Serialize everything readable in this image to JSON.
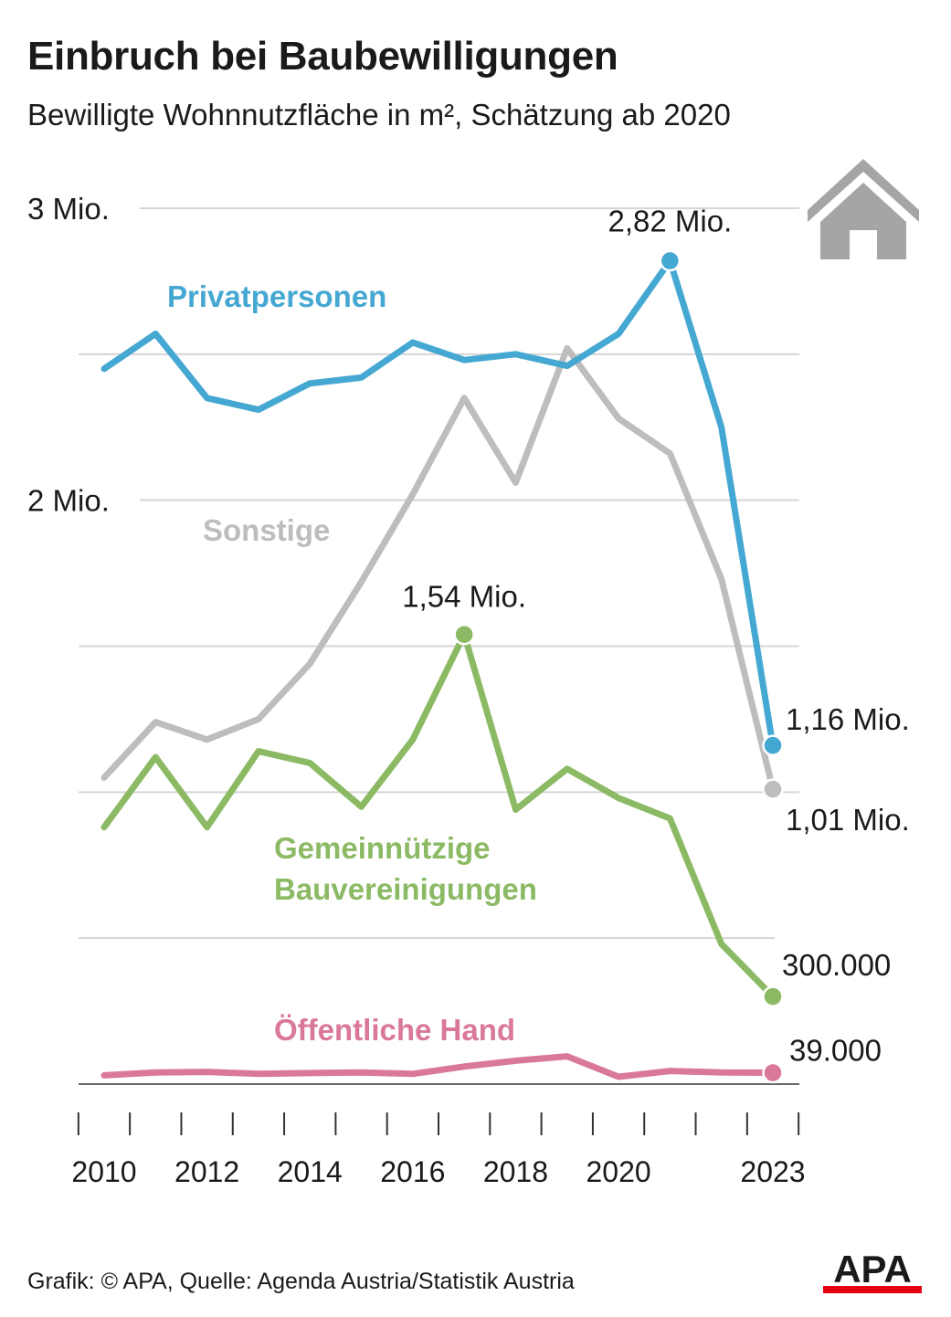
{
  "title": "Einbruch bei Baubewilligungen",
  "subtitle": "Bewilligte Wohnnutzfläche in m², Schätzung ab 2020",
  "source": "Grafik: © APA, Quelle: Agenda Austria/Statistik Austria",
  "logo_text": "APA",
  "icons": [
    "house-icon",
    "apa-logo"
  ],
  "colors": {
    "privatpersonen": "#45a8d2",
    "sonstige": "#bdbdbd",
    "gemeinnuetzige": "#8cba64",
    "oeffentliche": "#d9789b",
    "grid": "#d6d6d6",
    "text": "#1a1a1a",
    "house": "#a5a5a5",
    "logo_red": "#e3000f"
  },
  "chart_data": {
    "type": "line",
    "x": [
      2010,
      2011,
      2012,
      2013,
      2014,
      2015,
      2016,
      2017,
      2018,
      2019,
      2020,
      2021,
      2022,
      2023
    ],
    "ylim": [
      0,
      3000000
    ],
    "grid": true,
    "y_tick_values": [
      0,
      500000,
      1000000,
      1500000,
      2000000,
      2500000,
      3000000
    ],
    "y_tick_labels": [
      {
        "value": 3000000,
        "label": "3 Mio."
      },
      {
        "value": 2000000,
        "label": "2 Mio."
      }
    ],
    "x_tick_labels": [
      {
        "value": 2010,
        "label": "2010"
      },
      {
        "value": 2012,
        "label": "2012"
      },
      {
        "value": 2014,
        "label": "2014"
      },
      {
        "value": 2016,
        "label": "2016"
      },
      {
        "value": 2018,
        "label": "2018"
      },
      {
        "value": 2020,
        "label": "2020"
      },
      {
        "value": 2023,
        "label": "2023"
      }
    ],
    "series": [
      {
        "name": "Privatpersonen",
        "color_key": "privatpersonen",
        "values": [
          2450000,
          2570000,
          2350000,
          2310000,
          2400000,
          2420000,
          2540000,
          2480000,
          2500000,
          2460000,
          2570000,
          2820000,
          2250000,
          1160000
        ]
      },
      {
        "name": "Sonstige",
        "color_key": "sonstige",
        "values": [
          1050000,
          1240000,
          1180000,
          1250000,
          1440000,
          1720000,
          2020000,
          2350000,
          2060000,
          2520000,
          2280000,
          2160000,
          1730000,
          1010000
        ]
      },
      {
        "name": "Gemeinnützige Bauvereinigungen",
        "color_key": "gemeinnuetzige",
        "values": [
          880000,
          1120000,
          880000,
          1140000,
          1100000,
          950000,
          1180000,
          1540000,
          940000,
          1080000,
          980000,
          910000,
          480000,
          300000
        ]
      },
      {
        "name": "Öffentliche Hand",
        "color_key": "oeffentliche",
        "values": [
          30000,
          40000,
          42000,
          35000,
          38000,
          40000,
          35000,
          60000,
          80000,
          95000,
          25000,
          45000,
          40000,
          39000
        ]
      }
    ],
    "annotations": [
      {
        "series": 0,
        "index": 11,
        "text": "2,82 Mio."
      },
      {
        "series": 0,
        "index": 13,
        "text": "1,16 Mio."
      },
      {
        "series": 1,
        "index": 13,
        "text": "1,01 Mio."
      },
      {
        "series": 2,
        "index": 7,
        "text": "1,54 Mio."
      },
      {
        "series": 2,
        "index": 13,
        "text": "300.000"
      },
      {
        "series": 3,
        "index": 13,
        "text": "39.000"
      }
    ]
  }
}
